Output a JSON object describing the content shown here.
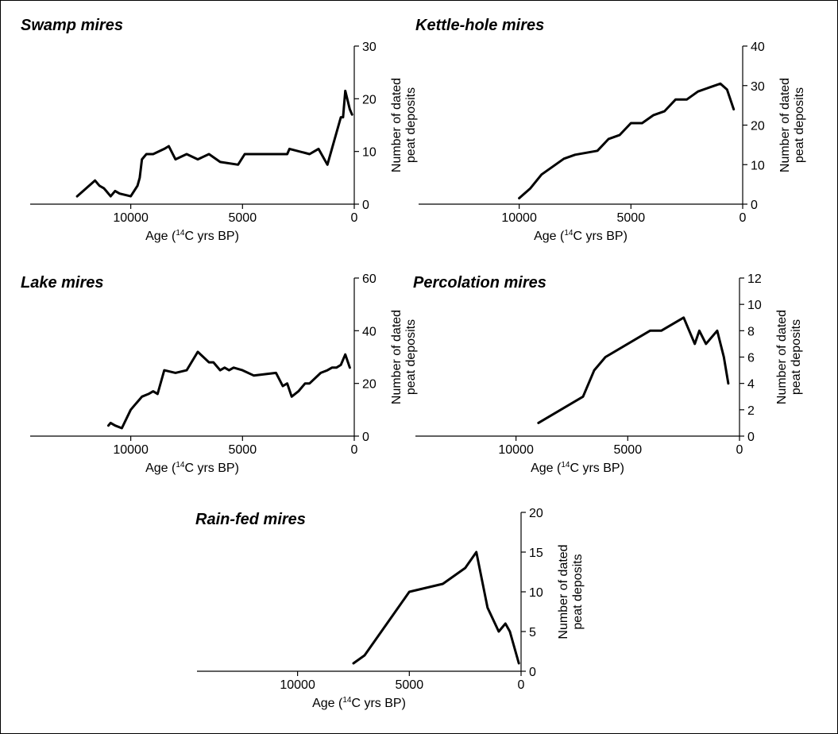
{
  "chart_data": [
    {
      "type": "line",
      "title": "Swamp mires",
      "xlabel": "Age (14C yrs BP)",
      "xlabel_pre": "Age (",
      "xlabel_sup": "14",
      "xlabel_post": "C yrs BP)",
      "ylabel_line1": "Number of dated",
      "ylabel_line2": "peat deposits",
      "x_reversed": true,
      "xlim": [
        14500,
        0
      ],
      "xticks": [
        10000,
        5000,
        0
      ],
      "ylim": [
        0,
        30
      ],
      "yticks": [
        0,
        10,
        20,
        30
      ],
      "x": [
        12400,
        11600,
        11400,
        11200,
        11100,
        10900,
        10700,
        10500,
        10000,
        9700,
        9600,
        9500,
        9300,
        9000,
        8500,
        8300,
        8000,
        7500,
        7000,
        6500,
        6000,
        5200,
        4900,
        3000,
        2900,
        2000,
        1800,
        1600,
        1200,
        600,
        500,
        400,
        200,
        100
      ],
      "y": [
        1.5,
        4.5,
        3.5,
        3,
        2.5,
        1.5,
        2.5,
        2,
        1.5,
        3.5,
        5,
        8.5,
        9.5,
        9.5,
        10.5,
        11,
        8.5,
        9.5,
        8.5,
        9.5,
        8,
        7.5,
        9.5,
        9.5,
        10.5,
        9.5,
        10,
        10.5,
        7.5,
        16.5,
        16.5,
        21.5,
        18,
        17
      ]
    },
    {
      "type": "line",
      "title": "Kettle-hole mires",
      "xlabel": "Age (14C yrs BP)",
      "xlabel_pre": "Age (",
      "xlabel_sup": "14",
      "xlabel_post": "C yrs BP)",
      "ylabel_line1": "Number of dated",
      "ylabel_line2": "peat deposits",
      "x_reversed": true,
      "xlim": [
        14500,
        0
      ],
      "xticks": [
        10000,
        5000,
        0
      ],
      "ylim": [
        0,
        40
      ],
      "yticks": [
        0,
        10,
        20,
        30,
        40
      ],
      "x": [
        10000,
        9500,
        9000,
        8000,
        7500,
        6500,
        6000,
        5500,
        5000,
        4500,
        4000,
        3500,
        3000,
        2500,
        2000,
        1500,
        1000,
        700,
        400
      ],
      "y": [
        1.5,
        4,
        7.5,
        11.5,
        12.5,
        13.5,
        16.5,
        17.5,
        20.5,
        20.5,
        22.5,
        23.5,
        26.5,
        26.5,
        28.5,
        29.5,
        30.5,
        29,
        24
      ]
    },
    {
      "type": "line",
      "title": "Lake mires",
      "xlabel": "Age (14C yrs BP)",
      "xlabel_pre": "Age (",
      "xlabel_sup": "14",
      "xlabel_post": "C yrs BP)",
      "ylabel_line1": "Number of dated",
      "ylabel_line2": "peat deposits",
      "x_reversed": true,
      "xlim": [
        14500,
        0
      ],
      "xticks": [
        10000,
        5000,
        0
      ],
      "ylim": [
        0,
        60
      ],
      "yticks": [
        0,
        20,
        40,
        60
      ],
      "x": [
        11000,
        10900,
        10700,
        10400,
        10000,
        9800,
        9600,
        9500,
        9200,
        9000,
        8800,
        8500,
        8000,
        7500,
        7000,
        6500,
        6300,
        6000,
        5800,
        5600,
        5400,
        5000,
        4500,
        3500,
        3200,
        3000,
        2800,
        2500,
        2200,
        2000,
        1500,
        1200,
        1000,
        800,
        600,
        400,
        200
      ],
      "y": [
        4,
        5,
        4,
        3,
        10,
        12,
        14,
        15,
        16,
        17,
        16,
        25,
        24,
        25,
        32,
        28,
        28,
        25,
        26,
        25,
        26,
        25,
        23,
        24,
        19,
        20,
        15,
        17,
        20,
        20,
        24,
        25,
        26,
        26,
        27,
        31,
        26
      ]
    },
    {
      "type": "line",
      "title": "Percolation mires",
      "xlabel": "Age (14C yrs BP)",
      "xlabel_pre": "Age (",
      "xlabel_sup": "14",
      "xlabel_post": "C yrs BP)",
      "ylabel_line1": "Number of dated",
      "ylabel_line2": "peat deposits",
      "x_reversed": true,
      "xlim": [
        14500,
        0
      ],
      "xticks": [
        10000,
        5000,
        0
      ],
      "ylim": [
        0,
        12
      ],
      "yticks": [
        0,
        2,
        4,
        6,
        8,
        10,
        12
      ],
      "x": [
        9000,
        7000,
        6500,
        6000,
        4000,
        3500,
        2500,
        2000,
        1800,
        1500,
        1000,
        700,
        500
      ],
      "y": [
        1,
        3,
        5,
        6,
        8,
        8,
        9,
        7,
        8,
        7,
        8,
        6,
        4
      ]
    },
    {
      "type": "line",
      "title": "Rain-fed mires",
      "xlabel": "Age (14C yrs BP)",
      "xlabel_pre": "Age (",
      "xlabel_sup": "14",
      "xlabel_post": "C yrs BP)",
      "ylabel_line1": "Number of dated",
      "ylabel_line2": "peat deposits",
      "x_reversed": true,
      "xlim": [
        14500,
        0
      ],
      "xticks": [
        10000,
        5000,
        0
      ],
      "ylim": [
        0,
        20
      ],
      "yticks": [
        0,
        5,
        10,
        15,
        20
      ],
      "x": [
        7500,
        7000,
        5000,
        3500,
        2500,
        2000,
        1500,
        1000,
        700,
        500,
        100
      ],
      "y": [
        1,
        2,
        10,
        11,
        13,
        15,
        8,
        5,
        6,
        5,
        1
      ]
    }
  ]
}
